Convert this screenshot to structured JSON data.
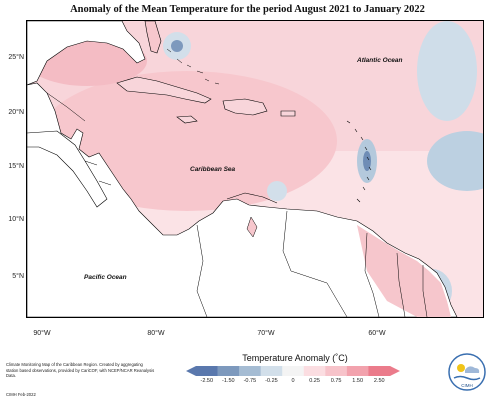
{
  "title": "Anomaly of the Mean Temperature for the period August 2021 to January 2022",
  "map": {
    "labels": {
      "atlantic": "Atlantic Ocean",
      "caribbean": "Caribbean Sea",
      "pacific": "Pacific Ocean"
    },
    "x_ticks": [
      "90°W",
      "80°W",
      "70°W",
      "60°W"
    ],
    "y_ticks": [
      "25°N",
      "20°N",
      "15°N",
      "10°N",
      "5°N"
    ],
    "colors": {
      "warm_light": "#fbe3e6",
      "warm": "#f7c7cd",
      "warm_strong": "#f19aa5",
      "cool_light": "#d8e4ee",
      "cool": "#b4c9dc",
      "cool_strong": "#7d99bd",
      "land": "#ffffff",
      "border": "#000000"
    }
  },
  "colorbar": {
    "title": "Temperature Anomaly (˚C)",
    "labels": [
      "-2.50",
      "-1.50",
      "-0.75",
      "-0.25",
      "0",
      "0.25",
      "0.75",
      "1.50",
      "2.50"
    ],
    "colors": [
      "#5a78ad",
      "#7d99bd",
      "#a5bcd3",
      "#d2dfea",
      "#f4f4f4",
      "#fbdde1",
      "#f7c3ca",
      "#f2a2ad",
      "#eb7b8b"
    ]
  },
  "credit": {
    "text": "Climate Monitoring Map of the Caribbean Region. Created by aggregating station based observations, provided by CariCOF, with NCEP/NCAR Reanalysis Data.",
    "date": "CIMH Feb-2022"
  },
  "logo": {
    "text": "CIMH"
  }
}
